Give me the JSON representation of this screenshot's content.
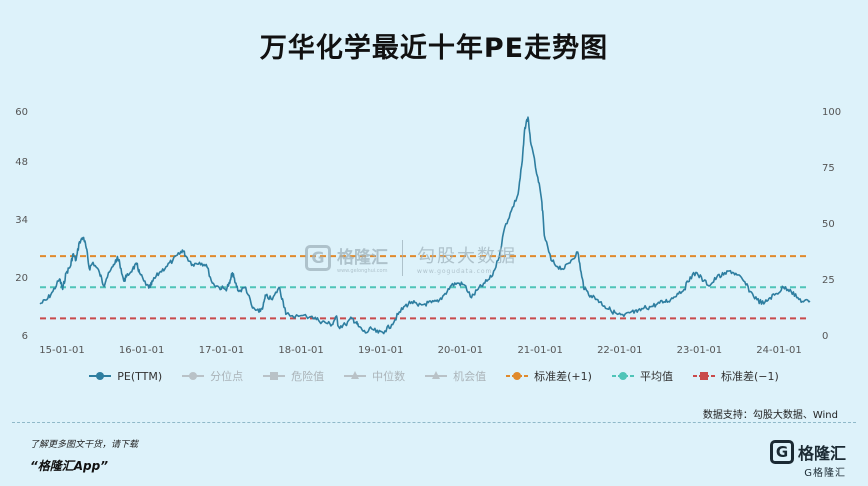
{
  "title": "万华化学最近十年PE走势图",
  "legend": [
    {
      "label": "PE(TTM)",
      "color": "#2e7ea0",
      "kind": "line-dot",
      "active": true
    },
    {
      "label": "分位点",
      "color": "#b9c2c7",
      "kind": "dot",
      "active": false
    },
    {
      "label": "危险值",
      "color": "#b9c2c7",
      "kind": "square",
      "active": false
    },
    {
      "label": "中位数",
      "color": "#b9c2c7",
      "kind": "triangle",
      "active": false
    },
    {
      "label": "机会值",
      "color": "#b9c2c7",
      "kind": "triangle",
      "active": false
    },
    {
      "label": "标准差(+1)",
      "color": "#e08a2c",
      "kind": "dash-dot",
      "active": true
    },
    {
      "label": "平均值",
      "color": "#4fc4b8",
      "kind": "dash-dot",
      "active": true
    },
    {
      "label": "标准差(−1)",
      "color": "#c94a4a",
      "kind": "dash-square",
      "active": true
    }
  ],
  "source": "数据支持：勾股大数据、Wind",
  "promo_line1": "了解更多图文干货，请下载",
  "promo_line2": "“格隆汇App”",
  "brand": {
    "logo": "G",
    "name": "格隆汇",
    "sub": "G格隆汇"
  },
  "watermark": {
    "logo": "G",
    "name": "格隆汇",
    "url1": "www.gelonghui.com",
    "name2": "勾股大数据",
    "url2": "www.gogudata.com"
  },
  "chart_data": {
    "type": "line",
    "series": [
      {
        "name": "PE(TTM)",
        "color": "#2e7ea0"
      }
    ],
    "x_ticks": [
      "15-01-01",
      "16-01-01",
      "17-01-01",
      "18-01-01",
      "19-01-01",
      "20-01-01",
      "21-01-01",
      "22-01-01",
      "23-01-01",
      "24-01-01"
    ],
    "y_left_ticks": [
      6,
      20,
      34,
      48,
      60
    ],
    "y_right_ticks": [
      0,
      25,
      50,
      75,
      100
    ],
    "ylim_left": [
      6,
      60
    ],
    "ylim_right": [
      0,
      100
    ],
    "x_range": [
      "2015-01-01",
      "2024-08-31"
    ],
    "points": [
      [
        "2015-01-01",
        13.5
      ],
      [
        "2015-02-01",
        14.5
      ],
      [
        "2015-03-01",
        16.5
      ],
      [
        "2015-04-01",
        19.5
      ],
      [
        "2015-04-15",
        17
      ],
      [
        "2015-05-01",
        21
      ],
      [
        "2015-05-20",
        22.5
      ],
      [
        "2015-06-01",
        25.5
      ],
      [
        "2015-06-15",
        24
      ],
      [
        "2015-07-01",
        28.5
      ],
      [
        "2015-07-20",
        29.5
      ],
      [
        "2015-08-01",
        27
      ],
      [
        "2015-08-15",
        22
      ],
      [
        "2015-09-01",
        23.5
      ],
      [
        "2015-10-01",
        21
      ],
      [
        "2015-10-20",
        18
      ],
      [
        "2015-11-01",
        19.5
      ],
      [
        "2015-12-01",
        22.5
      ],
      [
        "2015-12-20",
        24.5
      ],
      [
        "2016-01-01",
        23.5
      ],
      [
        "2016-01-20",
        19
      ],
      [
        "2016-02-01",
        20
      ],
      [
        "2016-03-01",
        22
      ],
      [
        "2016-03-20",
        23
      ],
      [
        "2016-04-01",
        21
      ],
      [
        "2016-05-01",
        18
      ],
      [
        "2016-05-20",
        17.5
      ],
      [
        "2016-06-01",
        19
      ],
      [
        "2016-07-01",
        21
      ],
      [
        "2016-08-01",
        22.5
      ],
      [
        "2016-09-01",
        24
      ],
      [
        "2016-10-01",
        25.5
      ],
      [
        "2016-10-15",
        26.5
      ],
      [
        "2016-11-01",
        25
      ],
      [
        "2016-12-01",
        23
      ],
      [
        "2017-01-01",
        23.5
      ],
      [
        "2017-02-01",
        23
      ],
      [
        "2017-03-01",
        18.5
      ],
      [
        "2017-04-01",
        17.5
      ],
      [
        "2017-05-01",
        17
      ],
      [
        "2017-05-20",
        18.5
      ],
      [
        "2017-06-01",
        21
      ],
      [
        "2017-06-15",
        18.5
      ],
      [
        "2017-07-01",
        16.5
      ],
      [
        "2017-08-01",
        17.5
      ],
      [
        "2017-09-01",
        12.5
      ],
      [
        "2017-10-01",
        11.5
      ],
      [
        "2017-10-20",
        13
      ],
      [
        "2017-11-01",
        15.5
      ],
      [
        "2017-12-01",
        14.5
      ],
      [
        "2018-01-01",
        17.5
      ],
      [
        "2018-01-20",
        14
      ],
      [
        "2018-02-01",
        11
      ],
      [
        "2018-04-01",
        10.5
      ],
      [
        "2018-06-01",
        10.5
      ],
      [
        "2018-07-01",
        9.5
      ],
      [
        "2018-08-01",
        9
      ],
      [
        "2018-09-01",
        8.5
      ],
      [
        "2018-09-20",
        10.5
      ],
      [
        "2018-10-01",
        8
      ],
      [
        "2018-11-01",
        8.5
      ],
      [
        "2018-12-01",
        10
      ],
      [
        "2018-12-20",
        9
      ],
      [
        "2019-01-01",
        8
      ],
      [
        "2019-02-01",
        6.5
      ],
      [
        "2019-03-01",
        7.5
      ],
      [
        "2019-04-01",
        6.5
      ],
      [
        "2019-05-01",
        7
      ],
      [
        "2019-06-01",
        8.5
      ],
      [
        "2019-07-01",
        11
      ],
      [
        "2019-08-01",
        13
      ],
      [
        "2019-09-01",
        14
      ],
      [
        "2019-10-01",
        13
      ],
      [
        "2019-11-01",
        13.5
      ],
      [
        "2019-12-01",
        13.8
      ],
      [
        "2020-01-01",
        14
      ],
      [
        "2020-02-01",
        16
      ],
      [
        "2020-03-01",
        18
      ],
      [
        "2020-04-01",
        18.5
      ],
      [
        "2020-05-01",
        18
      ],
      [
        "2020-06-01",
        15
      ],
      [
        "2020-07-01",
        17
      ],
      [
        "2020-08-01",
        18.5
      ],
      [
        "2020-09-01",
        20
      ],
      [
        "2020-10-01",
        24
      ],
      [
        "2020-11-01",
        32
      ],
      [
        "2020-12-01",
        36
      ],
      [
        "2021-01-01",
        40
      ],
      [
        "2021-01-20",
        48
      ],
      [
        "2021-02-01",
        56
      ],
      [
        "2021-02-15",
        58.5
      ],
      [
        "2021-03-01",
        52
      ],
      [
        "2021-04-01",
        44
      ],
      [
        "2021-04-20",
        38
      ],
      [
        "2021-05-01",
        30
      ],
      [
        "2021-06-01",
        24
      ],
      [
        "2021-07-01",
        22.5
      ],
      [
        "2021-08-01",
        22
      ],
      [
        "2021-09-01",
        24
      ],
      [
        "2021-10-01",
        26
      ],
      [
        "2021-10-20",
        20
      ],
      [
        "2021-11-01",
        17
      ],
      [
        "2021-12-01",
        15.5
      ],
      [
        "2022-01-01",
        14.5
      ],
      [
        "2022-02-01",
        13
      ],
      [
        "2022-03-01",
        12
      ],
      [
        "2022-04-01",
        11
      ],
      [
        "2022-05-01",
        10.5
      ],
      [
        "2022-06-01",
        11.5
      ],
      [
        "2022-07-01",
        11.5
      ],
      [
        "2022-08-01",
        12.5
      ],
      [
        "2022-09-01",
        12.8
      ],
      [
        "2022-10-01",
        13.5
      ],
      [
        "2022-11-01",
        14
      ],
      [
        "2022-12-01",
        14.5
      ],
      [
        "2023-01-01",
        16
      ],
      [
        "2023-02-01",
        17
      ],
      [
        "2023-03-01",
        20
      ],
      [
        "2023-04-01",
        21
      ],
      [
        "2023-05-01",
        19
      ],
      [
        "2023-06-01",
        18
      ],
      [
        "2023-07-01",
        20
      ],
      [
        "2023-08-01",
        20.5
      ],
      [
        "2023-09-01",
        21.5
      ],
      [
        "2023-10-01",
        20.5
      ],
      [
        "2023-11-01",
        19
      ],
      [
        "2023-12-01",
        16.5
      ],
      [
        "2024-01-01",
        14.5
      ],
      [
        "2024-02-01",
        13.5
      ],
      [
        "2024-03-01",
        15
      ],
      [
        "2024-04-01",
        16
      ],
      [
        "2024-05-01",
        17.5
      ],
      [
        "2024-06-01",
        17
      ],
      [
        "2024-07-01",
        15
      ],
      [
        "2024-08-01",
        14
      ],
      [
        "2024-08-31",
        14.2
      ]
    ],
    "reference_lines": [
      {
        "name": "标准差(+1)",
        "value": 25,
        "color": "#e08a2c"
      },
      {
        "name": "平均值",
        "value": 17.5,
        "color": "#4fc4b8"
      },
      {
        "name": "标准差(−1)",
        "value": 10,
        "color": "#c94a4a"
      }
    ],
    "grid": false,
    "legend_position": "bottom"
  }
}
